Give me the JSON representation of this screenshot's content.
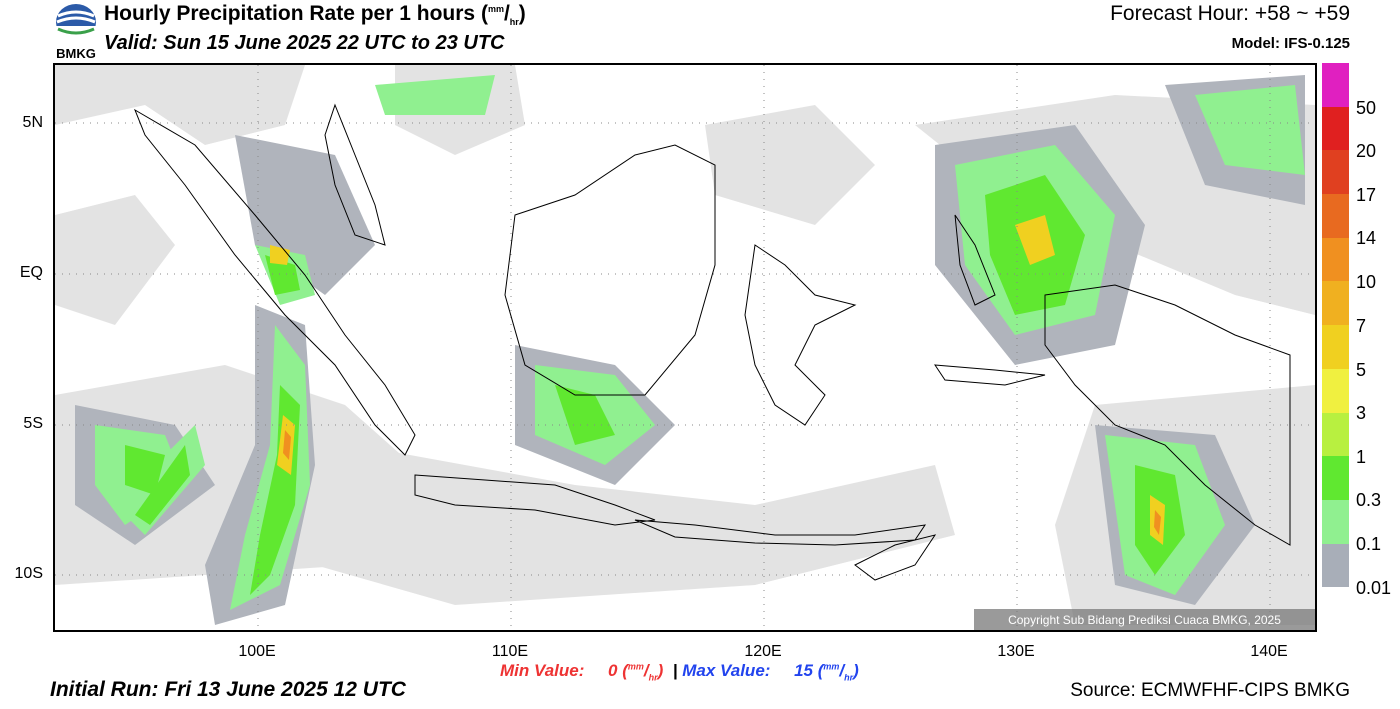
{
  "header": {
    "title": "Hourly Precipitation Rate per 1 hours",
    "unit_num": "mm",
    "unit_den": "hr",
    "valid": "Valid: Sun 15 June 2025 22 UTC to 23 UTC",
    "forecast_hour": "Forecast Hour: +58 ~ +59",
    "model": "Model: IFS-0.125"
  },
  "logo": {
    "text": "BMKG",
    "icon": "bmkg-logo-icon"
  },
  "map": {
    "lat_labels": [
      "5N",
      "EQ",
      "5S",
      "10S"
    ],
    "lon_labels": [
      "100E",
      "110E",
      "120E",
      "130E",
      "140E"
    ],
    "copyright": "Copyright Sub Bidang Prediksi Cuaca BMKG, 2025",
    "gridlines": true
  },
  "colorbar": {
    "labels": [
      "50",
      "20",
      "17",
      "14",
      "10",
      "7",
      "5",
      "3",
      "1",
      "0.3",
      "0.1",
      "0.01"
    ],
    "colors": [
      "#e020c0",
      "#e02020",
      "#e04020",
      "#e86a20",
      "#f09020",
      "#f0b020",
      "#f0d020",
      "#f0f040",
      "#b8f040",
      "#60e830",
      "#90f090",
      "#a8aeb8",
      "#e0e0e0"
    ]
  },
  "stats": {
    "min_label": "Min Value:",
    "min_value": "0",
    "max_label": "Max Value:",
    "max_value": "15",
    "separator": "|",
    "unit_num": "mm",
    "unit_den": "hr"
  },
  "footer": {
    "initial_run": "Initial Run: Fri 13 June 2025 12 UTC",
    "source": "Source: ECMWFHF-CIPS BMKG"
  }
}
